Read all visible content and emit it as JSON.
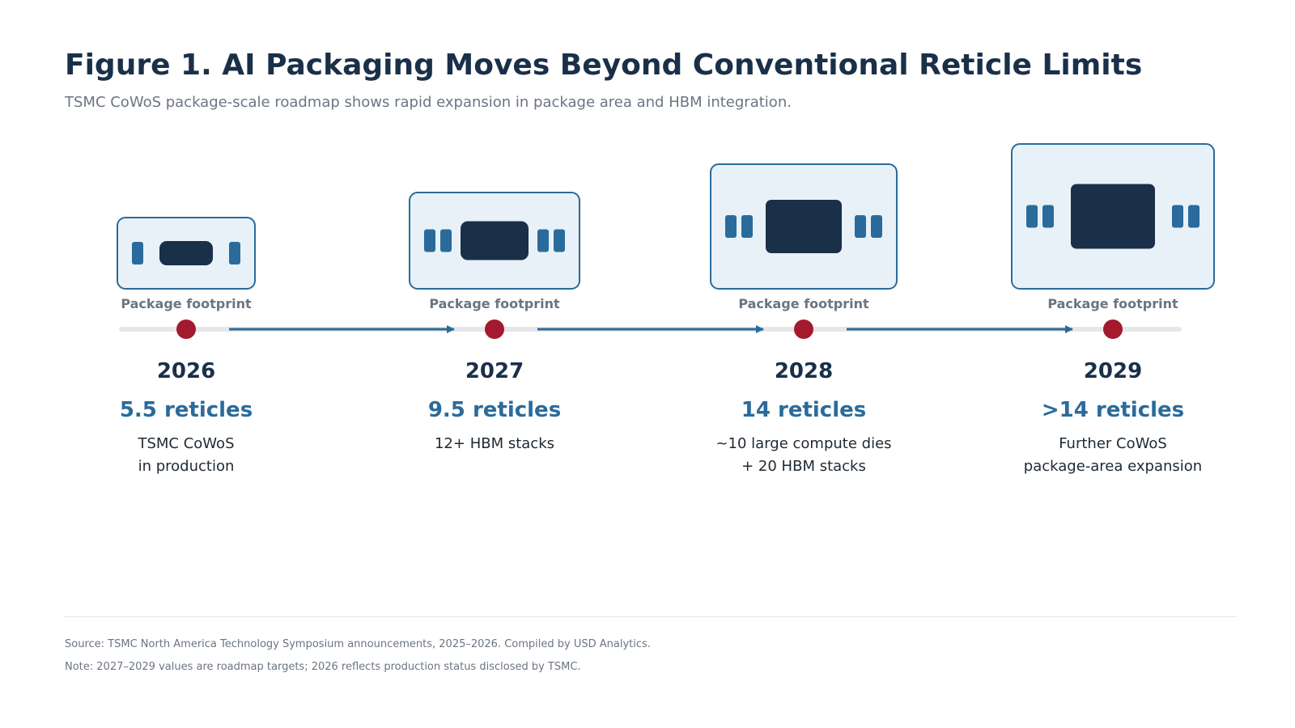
{
  "header": {
    "title": "Figure 1. AI Packaging Moves Beyond Conventional Reticle Limits",
    "subtitle": "TSMC CoWoS package-scale roadmap shows rapid expansion in package area and HBM integration."
  },
  "colors": {
    "navy": "#1a3049",
    "accent_blue": "#2a6b9b",
    "package_fill": "#e8f1f8",
    "package_stroke": "#2a6b9b",
    "marker_red": "#a3192d",
    "track_gray": "#e6e7ea",
    "muted_text": "#6b7583",
    "body_text": "#1f2933"
  },
  "milestones": [
    {
      "footprint_label": "Package footprint",
      "year": "2026",
      "metric": "5.5 reticles",
      "description": [
        "TSMC CoWoS",
        "in production"
      ],
      "package_scale": "5.5 reticles",
      "hbm_per_side": 1
    },
    {
      "footprint_label": "Package footprint",
      "year": "2027",
      "metric": "9.5 reticles",
      "description": [
        "12+ HBM stacks"
      ],
      "package_scale": "9.5 reticles",
      "hbm_per_side": 2
    },
    {
      "footprint_label": "Package footprint",
      "year": "2028",
      "metric": "14 reticles",
      "description": [
        "~10 large compute dies",
        "+ 20 HBM stacks"
      ],
      "package_scale": "14 reticles",
      "hbm_per_side": 2
    },
    {
      "footprint_label": "Package footprint",
      "year": "2029",
      "metric": ">14 reticles",
      "description": [
        "Further CoWoS",
        "package-area expansion"
      ],
      "package_scale": ">14 reticles",
      "hbm_per_side": 2
    }
  ],
  "footer": {
    "source": "Source: TSMC North America Technology Symposium announcements, 2025–2026. Compiled by USD Analytics.",
    "note": "Note: 2027–2029 values are roadmap targets; 2026 reflects production status disclosed by TSMC."
  }
}
